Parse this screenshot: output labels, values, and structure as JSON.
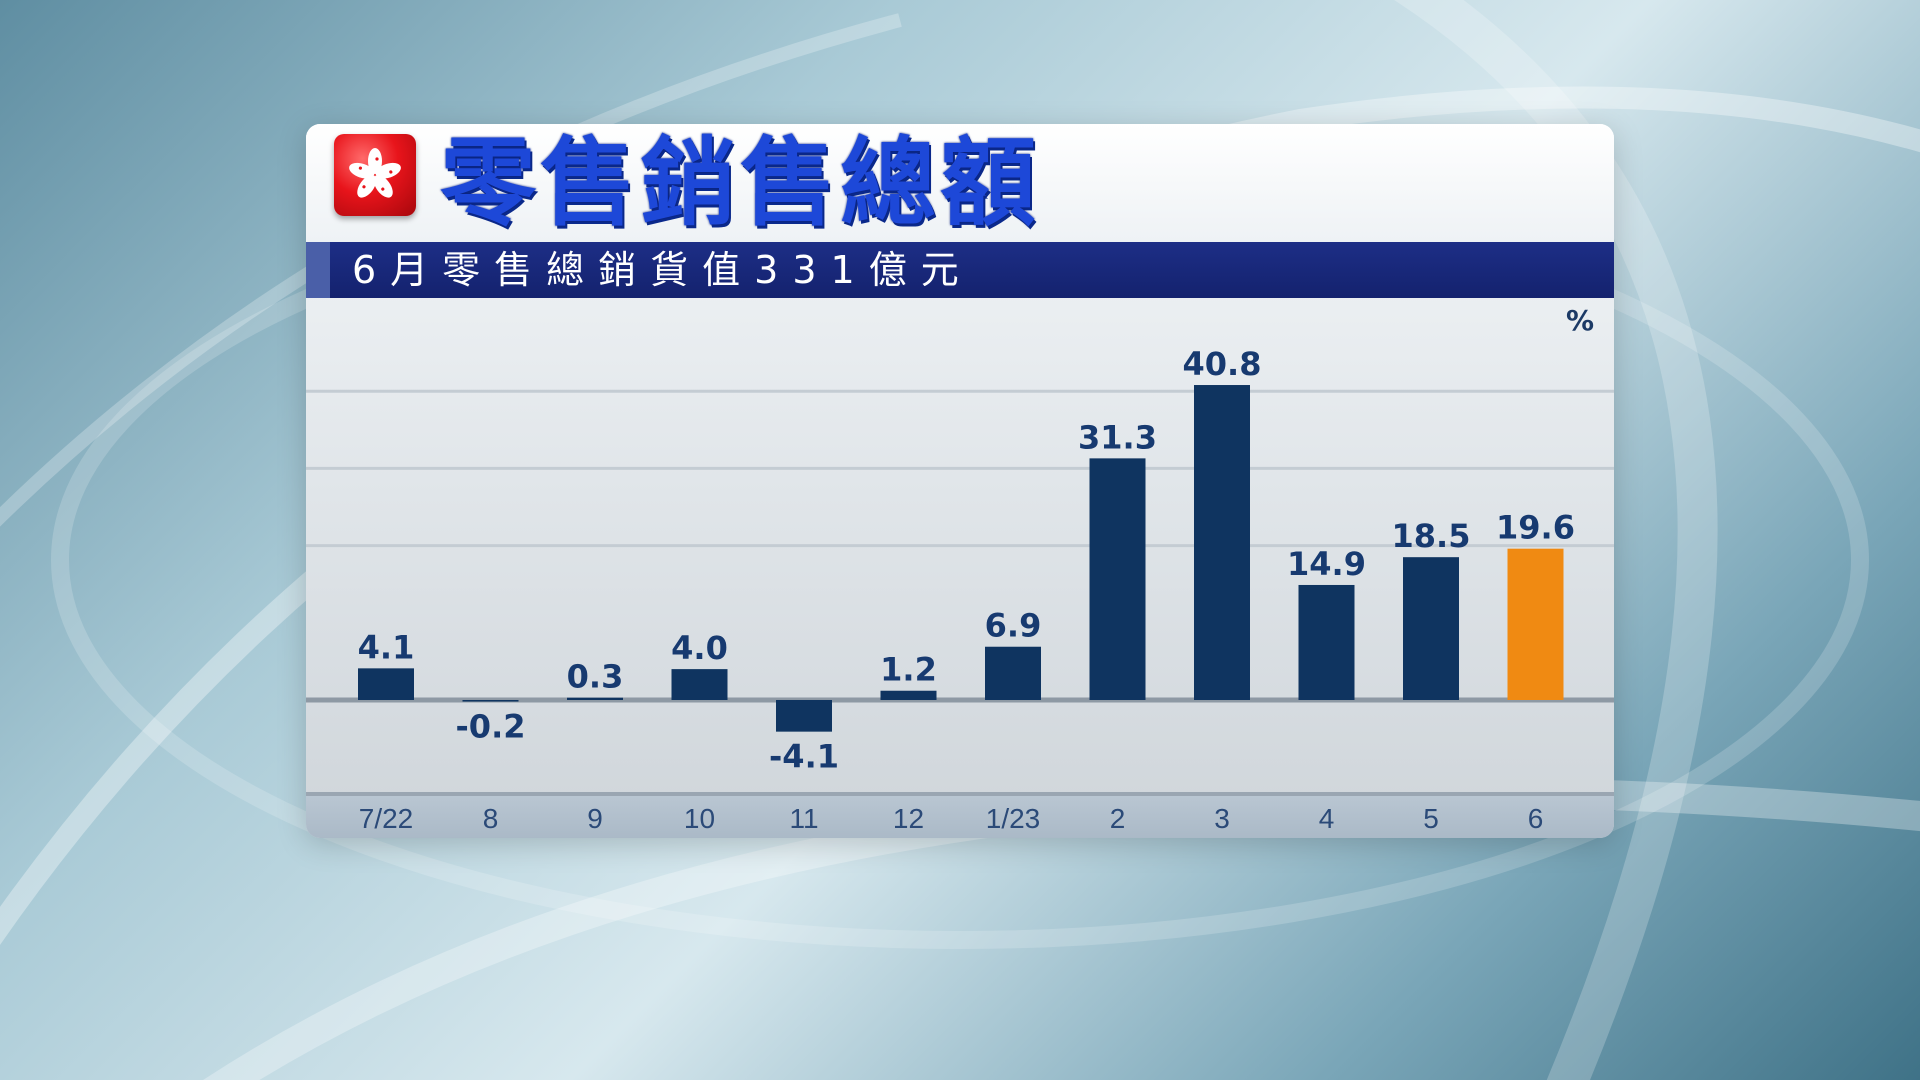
{
  "header": {
    "title": "零售銷售總額",
    "subtitle": "6月零售總銷貨值331億元",
    "logo": "hong-kong-bauhinia-emblem"
  },
  "chart_data": {
    "type": "bar",
    "unit": "%",
    "categories": [
      "7/22",
      "8",
      "9",
      "10",
      "11",
      "12",
      "1/23",
      "2",
      "3",
      "4",
      "5",
      "6"
    ],
    "values": [
      4.1,
      -0.2,
      0.3,
      4.0,
      -4.1,
      1.2,
      6.9,
      31.3,
      40.8,
      14.9,
      18.5,
      19.6
    ],
    "value_labels": [
      "4.1",
      "-0.2",
      "0.3",
      "4.0",
      "-4.1",
      "1.2",
      "6.9",
      "31.3",
      "40.8",
      "14.9",
      "18.5",
      "19.6"
    ],
    "highlight_index": 11,
    "ylim": [
      -13,
      50
    ],
    "grid": true
  },
  "colors": {
    "bar": "#0f3460",
    "highlight": "#f08a12",
    "label": "#173a70",
    "title": "#1d48d8",
    "subtitle_bar": "#1a2a7d"
  }
}
